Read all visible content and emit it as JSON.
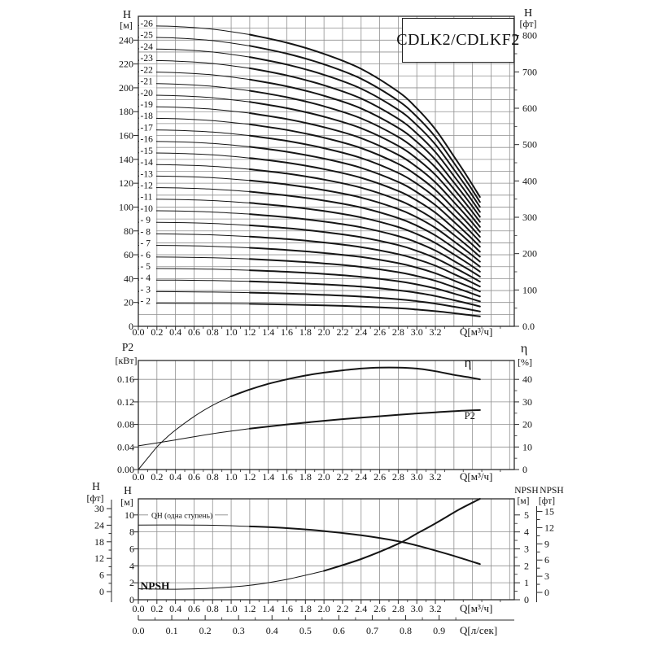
{
  "title": "CDLK2/CDLKF2",
  "colors": {
    "curve": "#151515",
    "grid": "#8f8f8f",
    "border": "#2a2a2a",
    "text": "#111111",
    "muted": "#8a8a8a",
    "bg": "#ffffff"
  },
  "x_axis": {
    "unit_label": "Q[м³/ч]",
    "tick_labels": [
      "0.0",
      "0.2",
      "0.4",
      "0.6",
      "0.8",
      "1.0",
      "1.2",
      "1.4",
      "1.6",
      "1.8",
      "2.0",
      "2.2",
      "2.4",
      "2.6",
      "2.8",
      "3.0",
      "3.2"
    ],
    "tick_values": [
      0,
      0.2,
      0.4,
      0.6,
      0.8,
      1.0,
      1.2,
      1.4,
      1.6,
      1.8,
      2.0,
      2.2,
      2.4,
      2.6,
      2.8,
      3.0,
      3.2
    ]
  },
  "chart_data": [
    {
      "id": "head-curves",
      "type": "line",
      "title": "CDLK2/CDLKF2",
      "xlabel": "Q[м³/ч]",
      "xlim": [
        0,
        4.05
      ],
      "left_axis": {
        "title": "H",
        "unit": "[м]",
        "tick_labels": [
          "0",
          "20",
          "40",
          "60",
          "80",
          "100",
          "120",
          "140",
          "160",
          "180",
          "200",
          "220",
          "240"
        ],
        "tick_values": [
          0,
          20,
          40,
          60,
          80,
          100,
          120,
          140,
          160,
          180,
          200,
          220,
          240
        ],
        "ylim": [
          0,
          260
        ],
        "grid_step": 10
      },
      "right_axis": {
        "title": "H",
        "unit": "[фт]",
        "tick_labels": [
          "0.0",
          "100",
          "200",
          "300",
          "400",
          "500",
          "600",
          "700",
          "800"
        ],
        "tick_values": [
          0,
          100,
          200,
          300,
          400,
          500,
          600,
          700,
          800
        ],
        "minor_step": 50
      },
      "stage_curves": {
        "label_prefix": "-",
        "stages": [
          2,
          3,
          4,
          5,
          6,
          7,
          8,
          9,
          10,
          11,
          12,
          13,
          14,
          15,
          16,
          17,
          18,
          19,
          20,
          21,
          22,
          23,
          24,
          25,
          26
        ],
        "shutoff_head_per_stage_m": 9.7,
        "x": [
          0,
          0.4,
          0.8,
          1.2,
          1.6,
          2.0,
          2.4,
          2.8,
          3.0,
          3.2,
          3.4,
          3.55,
          3.68
        ],
        "head_ratio": [
          1.0,
          0.997,
          0.988,
          0.97,
          0.943,
          0.906,
          0.856,
          0.78,
          0.725,
          0.655,
          0.565,
          0.495,
          0.43
        ],
        "bold_from": 1.2
      }
    },
    {
      "id": "power-efficiency",
      "type": "line",
      "xlabel": "Q[м³/ч]",
      "left_axis": {
        "title": "P2",
        "unit": "[кВт]",
        "tick_labels": [
          "0.00",
          "0.04",
          "0.08",
          "0.12",
          "0.16"
        ],
        "tick_values": [
          0,
          0.04,
          0.08,
          0.12,
          0.16
        ],
        "ylim": [
          0,
          0.1935
        ],
        "grid_step": 0.04
      },
      "right_axis": {
        "title": "η",
        "unit": "[%]",
        "tick_labels": [
          "0",
          "10",
          "20",
          "30",
          "40"
        ],
        "tick_values": [
          0,
          10,
          20,
          30,
          40
        ],
        "kw_per_percent": 0.004
      },
      "series": [
        {
          "name": "η",
          "axis": "right",
          "label": "η",
          "label_at": [
            3.55,
            45.5
          ],
          "bold_from": 1.0,
          "x": [
            0,
            0.1,
            0.2,
            0.3,
            0.4,
            0.6,
            0.8,
            1.0,
            1.2,
            1.4,
            1.6,
            1.8,
            2.0,
            2.2,
            2.4,
            2.6,
            2.8,
            3.0,
            3.2,
            3.4,
            3.55,
            3.68
          ],
          "y": [
            0,
            5,
            10,
            14,
            17.5,
            23.5,
            28.5,
            32.5,
            35.5,
            38,
            40,
            41.7,
            43,
            44,
            44.8,
            45.2,
            45.2,
            44.8,
            43.6,
            42,
            41,
            40
          ]
        },
        {
          "name": "P2",
          "axis": "left",
          "label": "P2",
          "label_at": [
            3.57,
            0.0895
          ],
          "bold_from": 1.2,
          "x": [
            0,
            0.4,
            0.8,
            1.2,
            1.6,
            2.0,
            2.4,
            2.8,
            3.2,
            3.45,
            3.68
          ],
          "y": [
            0.042,
            0.0525,
            0.0635,
            0.0725,
            0.08,
            0.0865,
            0.092,
            0.0972,
            0.1015,
            0.104,
            0.1055
          ]
        }
      ]
    },
    {
      "id": "qh-npsh",
      "type": "line",
      "xlabel": "Q[м³/ч]",
      "x2label": "Q[л/сек]",
      "x2_tick_labels": [
        "0.0",
        "0.1",
        "0.2",
        "0.3",
        "0.4",
        "0.5",
        "0.6",
        "0.7",
        "0.8",
        "0.9"
      ],
      "x2_tick_values": [
        0,
        0.1,
        0.2,
        0.3,
        0.4,
        0.5,
        0.6,
        0.7,
        0.8,
        0.9
      ],
      "x2_to_x_factor": 3.6,
      "left_axis": {
        "title": "H",
        "unit": "[м]",
        "tick_labels": [
          "0",
          "2",
          "4",
          "6",
          "8",
          "10"
        ],
        "tick_values": [
          0,
          2,
          4,
          6,
          8,
          10
        ],
        "ylim": [
          0,
          11.9
        ],
        "grid_step": 2
      },
      "far_left_axis": {
        "title": "H",
        "unit": "[фт]",
        "tick_labels": [
          "0",
          "6",
          "12",
          "18",
          "24",
          "30"
        ],
        "tick_values": [
          0,
          6,
          12,
          18,
          24,
          30
        ]
      },
      "right_axis": {
        "title": "NPSH",
        "unit": "[м]",
        "tick_labels": [
          "0",
          "1",
          "2",
          "3",
          "4",
          "5"
        ],
        "tick_values": [
          0,
          1,
          2,
          3,
          4,
          5
        ]
      },
      "far_right_axis": {
        "title": "NPSH",
        "unit": "[фт]",
        "tick_labels": [
          "0",
          "3",
          "6",
          "9",
          "12",
          "15"
        ],
        "tick_values": [
          0,
          3,
          6,
          9,
          12,
          15
        ]
      },
      "annotation": "QH (одна ступень)",
      "series": [
        {
          "name": "QH (одна ступень)",
          "axis": "left",
          "bold_from": 1.2,
          "x": [
            0,
            0.4,
            0.8,
            1.2,
            1.6,
            2.0,
            2.4,
            2.8,
            3.0,
            3.2,
            3.45,
            3.68
          ],
          "y": [
            8.8,
            8.82,
            8.78,
            8.65,
            8.45,
            8.1,
            7.6,
            6.9,
            6.4,
            5.8,
            5.0,
            4.2
          ]
        },
        {
          "name": "NPSH",
          "axis": "right",
          "label": "NPSH",
          "label_at": [
            0.18,
            0.8
          ],
          "bold_from": 2.0,
          "x": [
            0,
            0.4,
            0.8,
            1.2,
            1.6,
            2.0,
            2.4,
            2.8,
            3.0,
            3.2,
            3.45,
            3.68
          ],
          "y": [
            0.65,
            0.62,
            0.68,
            0.85,
            1.2,
            1.7,
            2.4,
            3.3,
            3.9,
            4.5,
            5.3,
            5.95
          ]
        }
      ]
    }
  ]
}
